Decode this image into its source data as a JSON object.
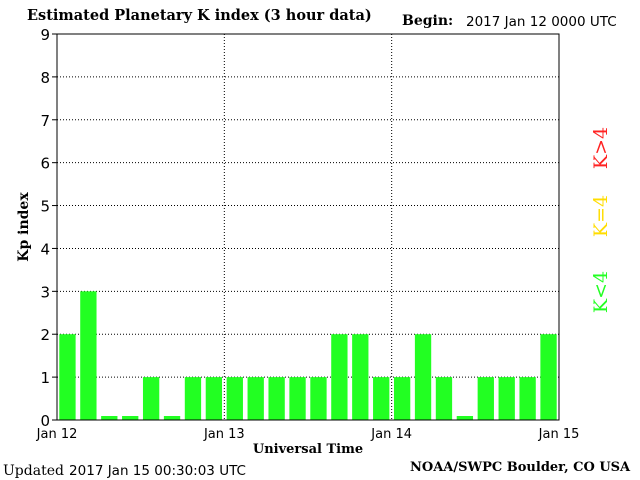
{
  "header": {
    "title": "Estimated Planetary K index (3 hour data)",
    "begin_label": "Begin:",
    "begin_value": "2017 Jan 12 0000 UTC"
  },
  "footer": {
    "updated_label": "Updated",
    "updated_value": "2017 Jan 15 00:30:03 UTC",
    "credit": "NOAA/SWPC Boulder, CO USA"
  },
  "legend": {
    "greater": "K>4",
    "equal": "K=4",
    "less": "K<4"
  },
  "colors": {
    "low": "#22ff22",
    "mid": "#ffdd00",
    "high": "#ff2222",
    "grid": "#000000"
  },
  "chart_data": {
    "type": "bar",
    "title": "Estimated Planetary K index (3 hour data)",
    "xlabel": "Universal Time",
    "ylabel": "Kp index",
    "ylim": [
      0,
      9
    ],
    "yticks": [
      0,
      1,
      2,
      3,
      4,
      5,
      6,
      7,
      8,
      9
    ],
    "x_tick_labels": [
      "Jan 12",
      "Jan 13",
      "Jan 14",
      "Jan 15"
    ],
    "grid": true,
    "values": [
      2,
      3,
      0,
      0,
      1,
      0,
      1,
      1,
      1,
      1,
      1,
      1,
      1,
      2,
      2,
      1,
      1,
      2,
      1,
      0,
      1,
      1,
      1,
      2
    ]
  }
}
